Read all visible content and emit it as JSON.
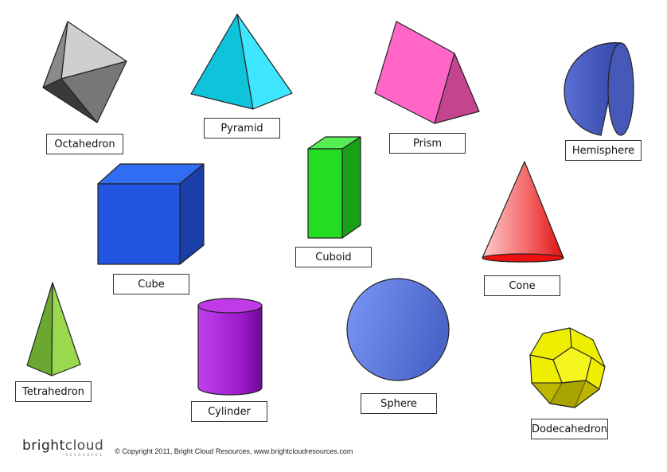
{
  "shapes": {
    "octahedron": "Octahedron",
    "pyramid": "Pyramid",
    "prism": "Prism",
    "hemisphere": "Hemisphere",
    "cube": "Cube",
    "cuboid": "Cuboid",
    "cone": "Cone",
    "tetrahedron": "Tetrahedron",
    "cylinder": "Cylinder",
    "sphere": "Sphere",
    "dodecahedron": "Dodecahedron"
  },
  "footer": {
    "logo_bright": "bright",
    "logo_cloud": "cloud",
    "logo_sub": "RESOURCES",
    "copyright": "© Copyright 2011, Bright Cloud Resources, www.brightcloudresources.com"
  },
  "colors": {
    "pyramid": "#11c8e8",
    "prism": "#ff66c8",
    "hemisphere": "#4a5fc6",
    "cube": "#2255dd",
    "cuboid": "#22dd22",
    "cone": "#ee3333",
    "tetrahedron": "#88cc44",
    "cylinder": "#aa22dd",
    "sphere": "#6a86e8",
    "dodecahedron": "#eeee00"
  }
}
